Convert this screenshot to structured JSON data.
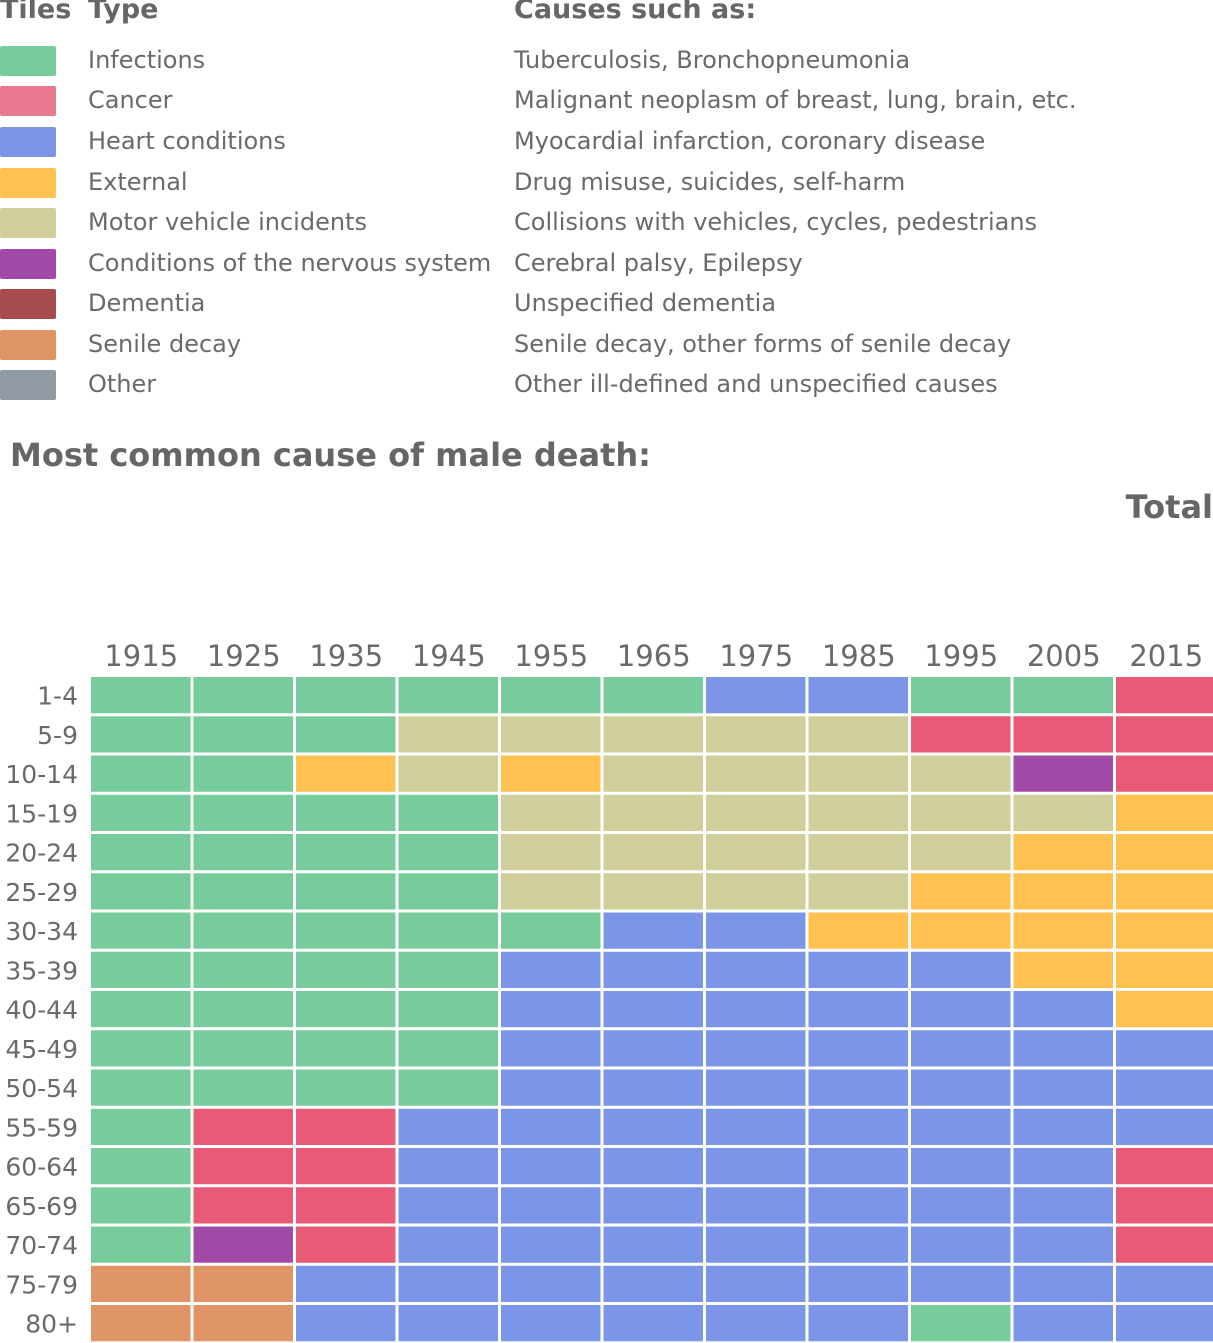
{
  "legend": {
    "col_tiles": "Tiles",
    "col_type": "Type",
    "col_causes": "Causes such as:",
    "items": [
      {
        "key": "I",
        "type": "Infections",
        "causes": "Tuberculosis, Bronchopneumonia",
        "color": "#78cb9b"
      },
      {
        "key": "C",
        "type": "Cancer",
        "causes": "Malignant neoplasm of breast, lung, brain, etc.",
        "color": "#e8798e"
      },
      {
        "key": "H",
        "type": "Heart conditions",
        "causes": "Myocardial infarction, coronary disease",
        "color": "#7b95e8"
      },
      {
        "key": "E",
        "type": "External",
        "causes": "Drug misuse, suicides, self-harm",
        "color": "#ffc150"
      },
      {
        "key": "M",
        "type": "Motor vehicle incidents",
        "causes": "Collisions with vehicles, cycles, pedestrians",
        "color": "#d0cf9b"
      },
      {
        "key": "N",
        "type": "Conditions of the nervous system",
        "causes": "Cerebral palsy, Epilepsy",
        "color": "#a24aa7"
      },
      {
        "key": "D",
        "type": "Dementia",
        "causes": "Unspecified dementia",
        "color": "#a84b4f"
      },
      {
        "key": "S",
        "type": "Senile decay",
        "causes": "Senile decay, other forms of senile decay",
        "color": "#e09566"
      },
      {
        "key": "O",
        "type": "Other",
        "causes": "Other ill-defined and unspecified causes",
        "color": "#9199a4"
      }
    ]
  },
  "chart_data": {
    "type": "heatmap",
    "title": "Most common cause of male death:",
    "subtitle": "Total",
    "x": [
      "1915",
      "1925",
      "1935",
      "1945",
      "1955",
      "1965",
      "1975",
      "1985",
      "1995",
      "2005",
      "2015"
    ],
    "y": [
      "1-4",
      "5-9",
      "10-14",
      "15-19",
      "20-24",
      "25-29",
      "30-34",
      "35-39",
      "40-44",
      "45-49",
      "50-54",
      "55-59",
      "60-64",
      "65-69",
      "70-74",
      "75-79",
      "80+"
    ],
    "grid_colors": {
      "C_cell": "#e85a76"
    },
    "cells": [
      [
        "I",
        "I",
        "I",
        "I",
        "I",
        "I",
        "H",
        "H",
        "I",
        "I",
        "C"
      ],
      [
        "I",
        "I",
        "I",
        "M",
        "M",
        "M",
        "M",
        "M",
        "C",
        "C",
        "C"
      ],
      [
        "I",
        "I",
        "E",
        "M",
        "E",
        "M",
        "M",
        "M",
        "M",
        "N",
        "C"
      ],
      [
        "I",
        "I",
        "I",
        "I",
        "M",
        "M",
        "M",
        "M",
        "M",
        "M",
        "E"
      ],
      [
        "I",
        "I",
        "I",
        "I",
        "M",
        "M",
        "M",
        "M",
        "M",
        "E",
        "E"
      ],
      [
        "I",
        "I",
        "I",
        "I",
        "M",
        "M",
        "M",
        "M",
        "E",
        "E",
        "E"
      ],
      [
        "I",
        "I",
        "I",
        "I",
        "I",
        "H",
        "H",
        "E",
        "E",
        "E",
        "E"
      ],
      [
        "I",
        "I",
        "I",
        "I",
        "H",
        "H",
        "H",
        "H",
        "H",
        "E",
        "E"
      ],
      [
        "I",
        "I",
        "I",
        "I",
        "H",
        "H",
        "H",
        "H",
        "H",
        "H",
        "E"
      ],
      [
        "I",
        "I",
        "I",
        "I",
        "H",
        "H",
        "H",
        "H",
        "H",
        "H",
        "H"
      ],
      [
        "I",
        "I",
        "I",
        "I",
        "H",
        "H",
        "H",
        "H",
        "H",
        "H",
        "H"
      ],
      [
        "I",
        "C",
        "C",
        "H",
        "H",
        "H",
        "H",
        "H",
        "H",
        "H",
        "H"
      ],
      [
        "I",
        "C",
        "C",
        "H",
        "H",
        "H",
        "H",
        "H",
        "H",
        "H",
        "C"
      ],
      [
        "I",
        "C",
        "C",
        "H",
        "H",
        "H",
        "H",
        "H",
        "H",
        "H",
        "C"
      ],
      [
        "I",
        "N",
        "C",
        "H",
        "H",
        "H",
        "H",
        "H",
        "H",
        "H",
        "C"
      ],
      [
        "S",
        "S",
        "H",
        "H",
        "H",
        "H",
        "H",
        "H",
        "H",
        "H",
        "H"
      ],
      [
        "S",
        "S",
        "H",
        "H",
        "H",
        "H",
        "H",
        "H",
        "I",
        "H",
        "H"
      ]
    ]
  }
}
